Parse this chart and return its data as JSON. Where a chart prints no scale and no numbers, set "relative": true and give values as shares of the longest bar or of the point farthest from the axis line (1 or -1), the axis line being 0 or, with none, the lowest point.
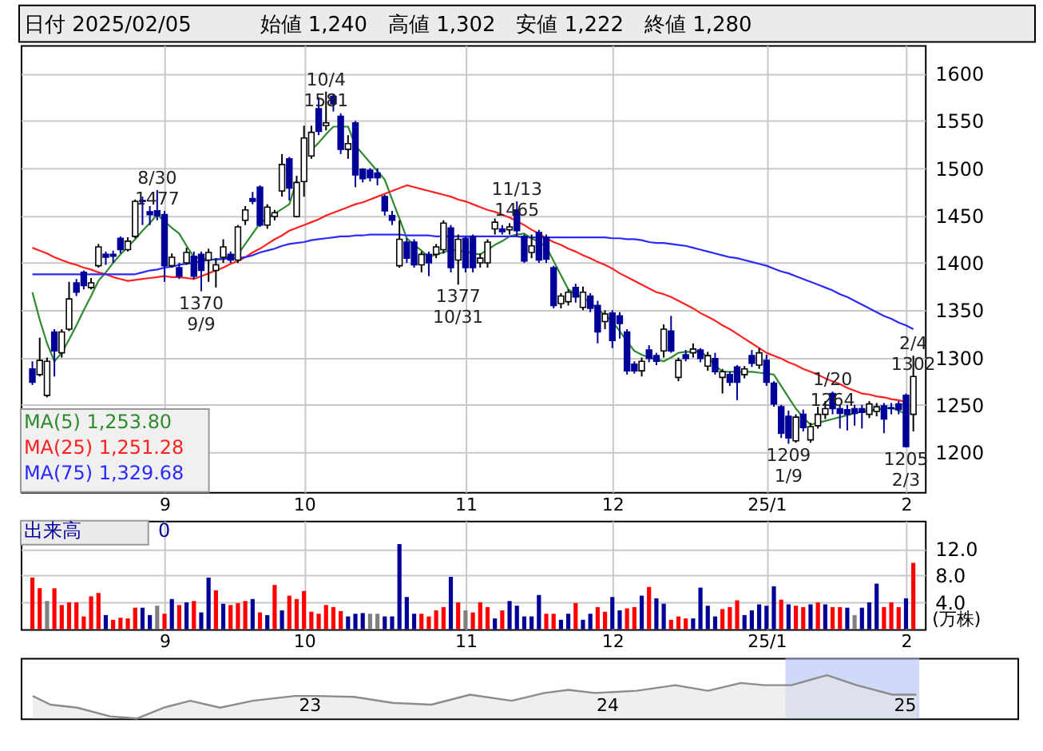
{
  "chart_data": [
    {
      "type": "candlestick",
      "title": "日付 2025/02/05",
      "subtitle": "始値 1,240　高値 1,302　安値 1,222　終値 1,280",
      "categories": [
        null,
        null,
        null,
        null,
        null,
        null,
        null,
        null,
        null,
        null,
        null,
        null,
        null,
        null,
        null,
        null,
        null,
        null,
        "9",
        null,
        null,
        null,
        null,
        null,
        null,
        null,
        null,
        null,
        null,
        null,
        null,
        null,
        null,
        null,
        null,
        null,
        null,
        "10",
        null,
        null,
        null,
        null,
        null,
        null,
        null,
        null,
        null,
        null,
        null,
        null,
        null,
        null,
        null,
        null,
        null,
        null,
        null,
        null,
        null,
        "11",
        null,
        null,
        null,
        null,
        null,
        null,
        null,
        null,
        null,
        null,
        null,
        null,
        null,
        null,
        null,
        null,
        null,
        null,
        null,
        "12",
        null,
        null,
        null,
        null,
        null,
        null,
        null,
        null,
        null,
        null,
        null,
        null,
        null,
        null,
        null,
        null,
        null,
        null,
        null,
        null,
        "25/1",
        null,
        null,
        null,
        null,
        null,
        null,
        null,
        null,
        null,
        null,
        null,
        null,
        null,
        null,
        null,
        null,
        null,
        null,
        "2",
        null
      ],
      "ohlc": [
        [
          1288,
          1296,
          1271,
          1274
        ],
        [
          1282,
          1321,
          1280,
          1297
        ],
        [
          1260,
          1300,
          1258,
          1296
        ],
        [
          1327,
          1330,
          1280,
          1307
        ],
        [
          1305,
          1330,
          1300,
          1327
        ],
        [
          1330,
          1380,
          1328,
          1362
        ],
        [
          1379,
          1383,
          1365,
          1369
        ],
        [
          1390,
          1392,
          1372,
          1376
        ],
        [
          1374,
          1384,
          1372,
          1379
        ],
        [
          1397,
          1420,
          1395,
          1417
        ],
        [
          1409,
          1412,
          1398,
          1406
        ],
        [
          1409,
          1413,
          1400,
          1407
        ],
        [
          1426,
          1428,
          1410,
          1414
        ],
        [
          1414,
          1427,
          1412,
          1423
        ],
        [
          1428,
          1467,
          1426,
          1465
        ],
        [
          1466,
          1470,
          1440,
          1465
        ],
        [
          1454,
          1460,
          1440,
          1451
        ],
        [
          1455,
          1477,
          1445,
          1450
        ],
        [
          1451,
          1455,
          1380,
          1397
        ],
        [
          1397,
          1410,
          1395,
          1406
        ],
        [
          1395,
          1400,
          1383,
          1386
        ],
        [
          1400,
          1416,
          1398,
          1411
        ],
        [
          1407,
          1412,
          1383,
          1386
        ],
        [
          1409,
          1412,
          1370,
          1392
        ],
        [
          1403,
          1415,
          1380,
          1411
        ],
        [
          1392,
          1405,
          1374,
          1398
        ],
        [
          1406,
          1425,
          1400,
          1417
        ],
        [
          1409,
          1412,
          1400,
          1403
        ],
        [
          1403,
          1440,
          1400,
          1438
        ],
        [
          1445,
          1460,
          1440,
          1456
        ],
        [
          1468,
          1475,
          1462,
          1465
        ],
        [
          1480,
          1482,
          1438,
          1440
        ],
        [
          1440,
          1462,
          1436,
          1459
        ],
        [
          1449,
          1456,
          1445,
          1453
        ],
        [
          1476,
          1515,
          1470,
          1504
        ],
        [
          1510,
          1512,
          1466,
          1479
        ],
        [
          1449,
          1492,
          1448,
          1485
        ],
        [
          1486,
          1545,
          1470,
          1532
        ],
        [
          1513,
          1545,
          1510,
          1538
        ],
        [
          1563,
          1575,
          1535,
          1539
        ],
        [
          1545,
          1581,
          1540,
          1548
        ],
        [
          1576,
          1578,
          1560,
          1568
        ],
        [
          1555,
          1558,
          1515,
          1520
        ],
        [
          1520,
          1535,
          1510,
          1526
        ],
        [
          1548,
          1550,
          1480,
          1493
        ],
        [
          1499,
          1500,
          1485,
          1489
        ],
        [
          1498,
          1500,
          1486,
          1490
        ],
        [
          1495,
          1500,
          1482,
          1490
        ],
        [
          1470,
          1472,
          1450,
          1455
        ],
        [
          1450,
          1455,
          1440,
          1445
        ],
        [
          1397,
          1445,
          1395,
          1425
        ],
        [
          1422,
          1426,
          1400,
          1405
        ],
        [
          1422,
          1425,
          1395,
          1398
        ],
        [
          1398,
          1412,
          1390,
          1409
        ],
        [
          1409,
          1412,
          1386,
          1400
        ],
        [
          1409,
          1420,
          1405,
          1417
        ],
        [
          1414,
          1445,
          1410,
          1442
        ],
        [
          1437,
          1440,
          1390,
          1395
        ],
        [
          1403,
          1430,
          1377,
          1425
        ],
        [
          1426,
          1428,
          1390,
          1395
        ],
        [
          1428,
          1430,
          1390,
          1395
        ],
        [
          1400,
          1410,
          1395,
          1405
        ],
        [
          1400,
          1425,
          1395,
          1422
        ],
        [
          1436,
          1447,
          1430,
          1443
        ],
        [
          1436,
          1440,
          1430,
          1433
        ],
        [
          1435,
          1442,
          1430,
          1438
        ],
        [
          1456,
          1465,
          1428,
          1434
        ],
        [
          1428,
          1430,
          1400,
          1402
        ],
        [
          1411,
          1430,
          1405,
          1418
        ],
        [
          1432,
          1435,
          1400,
          1403
        ],
        [
          1427,
          1430,
          1400,
          1404
        ],
        [
          1395,
          1397,
          1352,
          1355
        ],
        [
          1357,
          1368,
          1352,
          1365
        ],
        [
          1359,
          1372,
          1355,
          1369
        ],
        [
          1374,
          1378,
          1358,
          1364
        ],
        [
          1353,
          1375,
          1350,
          1369
        ],
        [
          1365,
          1368,
          1348,
          1352
        ],
        [
          1355,
          1360,
          1315,
          1327
        ],
        [
          1338,
          1350,
          1330,
          1346
        ],
        [
          1347,
          1350,
          1310,
          1318
        ],
        [
          1344,
          1348,
          1320,
          1336
        ],
        [
          1327,
          1330,
          1282,
          1286
        ],
        [
          1293,
          1296,
          1283,
          1286
        ],
        [
          1286,
          1300,
          1280,
          1296
        ],
        [
          1308,
          1313,
          1295,
          1299
        ],
        [
          1302,
          1305,
          1292,
          1296
        ],
        [
          1307,
          1335,
          1300,
          1330
        ],
        [
          1328,
          1344,
          1305,
          1307
        ],
        [
          1279,
          1300,
          1275,
          1297
        ],
        [
          1303,
          1308,
          1296,
          1299
        ],
        [
          1305,
          1315,
          1300,
          1309
        ],
        [
          1308,
          1310,
          1295,
          1299
        ],
        [
          1291,
          1306,
          1286,
          1302
        ],
        [
          1299,
          1305,
          1282,
          1285
        ],
        [
          1279,
          1288,
          1262,
          1285
        ],
        [
          1282,
          1285,
          1270,
          1274
        ],
        [
          1290,
          1292,
          1255,
          1274
        ],
        [
          1282,
          1291,
          1278,
          1288
        ],
        [
          1302,
          1308,
          1290,
          1294
        ],
        [
          1292,
          1310,
          1288,
          1305
        ],
        [
          1297,
          1303,
          1270,
          1274
        ],
        [
          1273,
          1275,
          1248,
          1251
        ],
        [
          1248,
          1250,
          1215,
          1220
        ],
        [
          1238,
          1244,
          1209,
          1215
        ],
        [
          1212,
          1240,
          1210,
          1237
        ],
        [
          1240,
          1245,
          1222,
          1226
        ],
        [
          1213,
          1231,
          1210,
          1227
        ],
        [
          1228,
          1248,
          1225,
          1240
        ],
        [
          1240,
          1254,
          1235,
          1246
        ],
        [
          1262,
          1264,
          1240,
          1246
        ],
        [
          1246,
          1250,
          1225,
          1241
        ],
        [
          1245,
          1250,
          1223,
          1240
        ],
        [
          1246,
          1250,
          1228,
          1241
        ],
        [
          1246,
          1250,
          1225,
          1242
        ],
        [
          1240,
          1254,
          1236,
          1251
        ],
        [
          1243,
          1252,
          1238,
          1248
        ],
        [
          1249,
          1252,
          1220,
          1235
        ],
        [
          1247,
          1252,
          1240,
          1246
        ],
        [
          1251,
          1254,
          1240,
          1245
        ],
        [
          1260,
          1262,
          1205,
          1206
        ],
        [
          1240,
          1302,
          1222,
          1280
        ]
      ],
      "colors": [
        "#000099",
        "#ffffff",
        "#ffffff",
        "#000099",
        "#ffffff",
        "#ffffff",
        "#000099",
        "#000099",
        "#ffffff",
        "#ffffff",
        "#000099",
        "#000099",
        "#000099",
        "#ffffff",
        "#ffffff",
        "#000099",
        "#000099",
        "#000099",
        "#000099",
        "#ffffff",
        "#000099",
        "#ffffff",
        "#000099",
        "#000099",
        "#ffffff",
        "#ffffff",
        "#ffffff",
        "#000099",
        "#ffffff",
        "#ffffff",
        "#000099",
        "#000099",
        "#ffffff",
        "#ffffff",
        "#ffffff",
        "#000099",
        "#ffffff",
        "#ffffff",
        "#ffffff",
        "#000099",
        "#ffffff",
        "#000099",
        "#000099",
        "#ffffff",
        "#000099",
        "#000099",
        "#000099",
        "#000099",
        "#000099",
        "#000099",
        "#ffffff",
        "#000099",
        "#000099",
        "#ffffff",
        "#000099",
        "#ffffff",
        "#ffffff",
        "#000099",
        "#ffffff",
        "#000099",
        "#000099",
        "#ffffff",
        "#ffffff",
        "#ffffff",
        "#000099",
        "#ffffff",
        "#000099",
        "#000099",
        "#ffffff",
        "#000099",
        "#000099",
        "#000099",
        "#ffffff",
        "#ffffff",
        "#000099",
        "#ffffff",
        "#000099",
        "#000099",
        "#ffffff",
        "#000099",
        "#000099",
        "#000099",
        "#000099",
        "#ffffff",
        "#000099",
        "#000099",
        "#ffffff",
        "#000099",
        "#ffffff",
        "#000099",
        "#ffffff",
        "#000099",
        "#ffffff",
        "#000099",
        "#ffffff",
        "#000099",
        "#000099",
        "#ffffff",
        "#000099",
        "#ffffff",
        "#000099",
        "#000099",
        "#000099",
        "#000099",
        "#ffffff",
        "#000099",
        "#ffffff",
        "#ffffff",
        "#ffffff",
        "#000099",
        "#000099",
        "#000099",
        "#000099",
        "#000099",
        "#ffffff",
        "#ffffff",
        "#000099",
        "#000099",
        "#000099",
        "#000099",
        "#ffffff"
      ],
      "series": [
        {
          "name": "MA(5)  1,253.80",
          "type": "line",
          "color": "#2e8b2e",
          "values": [
            1369,
            1340,
            1315,
            1296,
            1305,
            1319,
            1334,
            1350,
            1365,
            1381,
            1390,
            1400,
            1409,
            1417,
            1425,
            1434,
            1442,
            1451,
            1444,
            1437,
            1431,
            1418,
            1406,
            1405,
            1404,
            1403,
            1405,
            1407,
            1409,
            1420,
            1431,
            1442,
            1447,
            1452,
            1457,
            1462,
            1487,
            null,
            1519,
            1527,
            1536,
            1544,
            1544,
            1544,
            1524,
            1515,
            1506,
            1497,
            1488,
            1467,
            1447,
            1426,
            1419,
            1413,
            1406,
            1409,
            1411,
            1414,
            1413,
            1412,
            1410,
            1409,
            1414,
            1419,
            1423,
            1428,
            1430,
            1431,
            1426,
            1422,
            1417,
            1402,
            1387,
            1372,
            1367,
            1363,
            1358,
            1351,
            1345,
            1338,
            1328,
            1317,
            1307,
            1303,
            1300,
            1298,
            1296,
            1300,
            1305,
            1306,
            1306,
            1307,
            1300,
            1292,
            1285,
            1285,
            1285,
            1285,
            1285,
            1284,
            1283,
            1282,
            1270,
            1258,
            1246,
            1237,
            1229,
            1231,
            1233,
            1235,
            1237,
            1239,
            1241,
            1243,
            1244,
            1245,
            1246,
            1247,
            1244,
            1240,
            null
          ]
        },
        {
          "name": "MA(25)  1,251.28",
          "type": "line",
          "color": "#ff2020",
          "values": [
            1416,
            1413,
            1410,
            1406,
            1403,
            1400,
            1398,
            1395,
            1393,
            1390,
            1388,
            1385,
            1383,
            1381,
            1382,
            1383,
            1384,
            1385,
            1386,
            1385,
            1385,
            1384,
            1383,
            1386,
            1389,
            1392,
            1395,
            1399,
            1402,
            1406,
            1411,
            1415,
            1420,
            1425,
            1429,
            1434,
            1437,
            1440,
            1443,
            1446,
            1450,
            1453,
            1456,
            1459,
            1462,
            1464,
            1467,
            1470,
            1473,
            1476,
            1479,
            1482,
            1480,
            1478,
            1476,
            1474,
            1472,
            1470,
            1467,
            1465,
            1462,
            1459,
            1456,
            1454,
            1451,
            1448,
            1444,
            1440,
            1435,
            1431,
            1426,
            1422,
            1419,
            1415,
            1412,
            1408,
            1405,
            1401,
            1398,
            1394,
            1389,
            1385,
            1381,
            1377,
            1373,
            1369,
            1367,
            1364,
            1360,
            1356,
            1352,
            1347,
            1343,
            1339,
            1334,
            1330,
            1325,
            1320,
            1315,
            1310,
            1305,
            1302,
            1299,
            1295,
            1292,
            1288,
            1285,
            1282,
            1278,
            1275,
            1272,
            1268,
            1265,
            1262,
            1261,
            1259,
            1258,
            1256,
            1255,
            1253,
            null
          ]
        },
        {
          "name": "MA(75)  1,329.68",
          "type": "line",
          "color": "#2a2aff",
          "values": [
            1388,
            1388,
            1388,
            1388,
            1388,
            1388,
            1388,
            1388,
            1388,
            1388,
            1388,
            1388,
            1388,
            1388,
            1388,
            1390,
            1392,
            1393,
            1395,
            1396,
            1398,
            1399,
            1400,
            1402,
            1403,
            1404,
            1404,
            1405,
            1405,
            1406,
            1408,
            1411,
            1413,
            1415,
            1418,
            1420,
            1421,
            1422,
            1424,
            1425,
            1426,
            1427,
            1428,
            1428,
            1429,
            1429,
            1430,
            1430,
            1430,
            1430,
            1430,
            1429,
            1429,
            1429,
            1429,
            1428,
            1428,
            1428,
            1428,
            1428,
            1428,
            1428,
            1428,
            1428,
            1428,
            1428,
            1428,
            1427,
            1427,
            1427,
            1427,
            1427,
            1427,
            1427,
            1427,
            1427,
            1427,
            1427,
            1427,
            1426,
            1426,
            1425,
            1425,
            1424,
            1422,
            1421,
            1421,
            1420,
            1419,
            1418,
            1416,
            1414,
            1412,
            1410,
            1408,
            1406,
            1405,
            1403,
            1401,
            1399,
            1397,
            1394,
            1391,
            1389,
            1386,
            1383,
            1380,
            1377,
            1374,
            1371,
            1367,
            1364,
            1360,
            1356,
            1352,
            1348,
            1344,
            1341,
            1337,
            1334,
            1330
          ]
        }
      ],
      "ylim": [
        1158,
        1630
      ],
      "yticks": [
        1200,
        1250,
        1300,
        1350,
        1400,
        1450,
        1500,
        1550,
        1600
      ],
      "grid": true,
      "legend": "bottom left",
      "annotations": [
        {
          "text": "8/30\n1477",
          "y": 1477
        },
        {
          "text": "1370\n9/9",
          "y": 1370
        },
        {
          "text": "10/4\n1581",
          "y": 1581
        },
        {
          "text": "1377\n10/31",
          "y": 1377
        },
        {
          "text": "11/13\n1465",
          "y": 1465
        },
        {
          "text": "1209\n1/9",
          "y": 1209
        },
        {
          "text": "1/20\n1264",
          "y": 1264
        },
        {
          "text": "1205\n2/3",
          "y": 1205
        },
        {
          "text": "2/4\n1302",
          "y": 1302
        }
      ]
    },
    {
      "type": "bar",
      "categories": [
        null,
        null,
        null,
        null,
        null,
        null,
        null,
        null,
        null,
        null,
        null,
        null,
        null,
        null,
        null,
        null,
        null,
        null,
        "9",
        null,
        null,
        null,
        null,
        null,
        null,
        null,
        null,
        null,
        null,
        null,
        null,
        null,
        null,
        null,
        null,
        null,
        null,
        "10",
        null,
        null,
        null,
        null,
        null,
        null,
        null,
        null,
        null,
        null,
        null,
        null,
        null,
        null,
        null,
        null,
        null,
        null,
        null,
        null,
        null,
        "11",
        null,
        null,
        null,
        null,
        null,
        null,
        null,
        null,
        null,
        null,
        null,
        null,
        null,
        null,
        null,
        null,
        null,
        null,
        null,
        "12",
        null,
        null,
        null,
        null,
        null,
        null,
        null,
        null,
        null,
        null,
        null,
        null,
        null,
        null,
        null,
        null,
        null,
        null,
        null,
        null,
        "25/1",
        null,
        null,
        null,
        null,
        null,
        null,
        null,
        null,
        null,
        null,
        null,
        null,
        null,
        null,
        null,
        null,
        null,
        null,
        "2",
        null
      ],
      "values": [
        7.7,
        6.1,
        4.2,
        6.1,
        3.6,
        4.0,
        4.0,
        1.9,
        4.9,
        5.4,
        2.1,
        1.4,
        1.7,
        1.6,
        3.2,
        3.2,
        2.1,
        3.5,
        2.3,
        4.5,
        3.6,
        4.0,
        4.2,
        2.5,
        7.7,
        5.8,
        3.8,
        3.6,
        3.9,
        4.2,
        4.5,
        2.5,
        2.1,
        6.6,
        2.8,
        5.0,
        4.5,
        5.7,
        2.6,
        2.3,
        3.6,
        3.3,
        2.7,
        1.9,
        2.3,
        2.4,
        2.3,
        2.3,
        1.9,
        1.9,
        12.7,
        4.8,
        2.3,
        2.3,
        1.9,
        2.8,
        3.3,
        7.8,
        4.0,
        2.8,
        2.5,
        4.0,
        3.3,
        1.6,
        2.8,
        4.2,
        3.5,
        1.9,
        1.9,
        5.1,
        2.3,
        2.3,
        1.4,
        2.3,
        3.9,
        1.4,
        2.3,
        3.3,
        2.6,
        4.8,
        2.8,
        3.1,
        3.3,
        5.0,
        6.3,
        4.6,
        3.8,
        1.4,
        1.9,
        1.6,
        1.6,
        6.2,
        3.5,
        1.9,
        3.0,
        3.3,
        4.3,
        2.1,
        2.8,
        3.7,
        3.5,
        6.4,
        4.4,
        3.7,
        3.5,
        3.3,
        3.7,
        4.0,
        3.7,
        3.3,
        3.3,
        3.2,
        2.1,
        3.2,
        4.0,
        6.8,
        3.3,
        4.0,
        3.3,
        4.6,
        9.9
      ],
      "colors": [
        "#ff0000",
        "#ff0000",
        "#808080",
        "#ff0000",
        "#ff0000",
        "#ff0000",
        "#ff0000",
        "#ff0000",
        "#ff0000",
        "#ff0000",
        "#000099",
        "#ff0000",
        "#ff0000",
        "#ff0000",
        "#ff0000",
        "#000099",
        "#000099",
        "#808080",
        "#ff0000",
        "#000099",
        "#ff0000",
        "#000099",
        "#ff0000",
        "#000099",
        "#000099",
        "#ff0000",
        "#000099",
        "#ff0000",
        "#ff0000",
        "#ff0000",
        "#000099",
        "#ff0000",
        "#000099",
        "#ff0000",
        "#000099",
        "#ff0000",
        "#ff0000",
        "#ff0000",
        "#ff0000",
        "#ff0000",
        "#ff0000",
        "#ff0000",
        "#ff0000",
        "#000099",
        "#000099",
        "#000099",
        "#808080",
        "#808080",
        "#000099",
        "#000099",
        "#000099",
        "#000099",
        "#000099",
        "#ff0000",
        "#ff0000",
        "#ff0000",
        "#ff0000",
        "#000099",
        "#ff0000",
        "#808080",
        "#ff0000",
        "#ff0000",
        "#ff0000",
        "#000099",
        "#ff0000",
        "#000099",
        "#000099",
        "#000099",
        "#000099",
        "#000099",
        "#ff0000",
        "#ff0000",
        "#000099",
        "#000099",
        "#ff0000",
        "#000099",
        "#000099",
        "#ff0000",
        "#ff0000",
        "#000099",
        "#000099",
        "#ff0000",
        "#ff0000",
        "#000099",
        "#ff0000",
        "#000099",
        "#000099",
        "#ff0000",
        "#ff0000",
        "#ff0000",
        "#000099",
        "#000099",
        "#000099",
        "#000099",
        "#ff0000",
        "#ff0000",
        "#ff0000",
        "#000099",
        "#000099",
        "#000099",
        "#000099",
        "#000099",
        "#ff0000",
        "#000099",
        "#ff0000",
        "#ff0000",
        "#000099",
        "#ff0000",
        "#000099",
        "#ff0000",
        "#ff0000",
        "#000099",
        "#808080",
        "#000099",
        "#000099",
        "#000099",
        "#ff0000",
        "#ff0000",
        "#ff0000",
        "#000099",
        "#ff0000"
      ],
      "ylim": [
        0,
        16.2
      ],
      "yticks": [
        {
          "value": 4,
          "label": "4.0"
        },
        {
          "value": 8,
          "label": "8.0"
        },
        {
          "value": 12,
          "label": "12.0"
        }
      ],
      "ylabel": "(万株)",
      "grid": true,
      "annotations": [
        "出来高　　　　0"
      ]
    },
    {
      "type": "area",
      "relative": true,
      "color": "#8c8c8c",
      "x": [
        2022.07,
        2022.13,
        2022.22,
        2022.33,
        2022.42,
        2022.51,
        2022.6,
        2022.7,
        2022.81,
        2022.95,
        2023.02,
        2023.15,
        2023.28,
        2023.41,
        2023.54,
        2023.68,
        2023.79,
        2023.87,
        2023.96,
        2024.1,
        2024.23,
        2024.34,
        2024.45,
        2024.53,
        2024.62,
        2024.74,
        2024.84,
        2024.96,
        2025.04
      ],
      "values": [
        0.52,
        0.32,
        0.25,
        0.05,
        0.0,
        0.25,
        0.41,
        0.25,
        0.41,
        0.52,
        0.52,
        0.5,
        0.36,
        0.32,
        0.55,
        0.41,
        0.59,
        0.66,
        0.59,
        0.64,
        0.77,
        0.64,
        0.82,
        0.77,
        0.77,
        1.0,
        0.77,
        0.55,
        0.55
      ],
      "xlim": [
        2022.03,
        2025.38
      ],
      "xticks": [
        {
          "value": 2023,
          "label": "23"
        },
        {
          "value": 2024,
          "label": "24"
        },
        {
          "value": 2025,
          "label": "25"
        }
      ],
      "bands": [
        {
          "axis": "x",
          "from": 2024.6,
          "to": 2025.05,
          "color": "#b3bff5"
        }
      ],
      "tick_labels": "x"
    }
  ]
}
